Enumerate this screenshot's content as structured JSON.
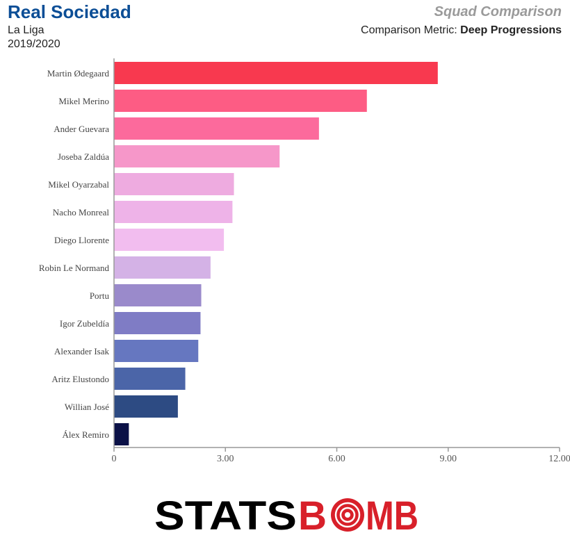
{
  "header": {
    "team": "Real Sociedad",
    "league": "La Liga",
    "season": "2019/2020",
    "chart_type": "Squad Comparison",
    "metric_prefix": "Comparison Metric: ",
    "metric_name": "Deep Progressions"
  },
  "logo": {
    "part1": "STATS",
    "part2": "B",
    "part3": "MB",
    "dark": "#111111",
    "red": "#d8202a"
  },
  "chart_data": {
    "type": "bar",
    "orientation": "horizontal",
    "title": "Squad Comparison",
    "xlabel": "Deep Progressions",
    "ylabel": "",
    "xlim": [
      0,
      12
    ],
    "xticks": [
      0,
      3,
      6,
      9,
      12
    ],
    "xtick_labels": [
      "0",
      "3.00",
      "6.00",
      "9.00",
      "12.00"
    ],
    "categories": [
      "Martin Ødegaard",
      "Mikel Merino",
      "Ander Guevara",
      "Joseba Zaldúa",
      "Mikel Oyarzabal",
      "Nacho Monreal",
      "Diego Llorente",
      "Robin Le Normand",
      "Portu",
      "Igor Zubeldía",
      "Alexander Isak",
      "Aritz Elustondo",
      "Willian José",
      "Álex Remiro"
    ],
    "values": [
      8.72,
      6.81,
      5.52,
      4.46,
      3.23,
      3.19,
      2.96,
      2.6,
      2.35,
      2.33,
      2.27,
      1.92,
      1.72,
      0.4
    ],
    "colors": [
      "#f8394f",
      "#fd5c84",
      "#fc6a9c",
      "#f697c9",
      "#eeabe0",
      "#eeb3e8",
      "#f2bdef",
      "#d4b2e6",
      "#9a8acb",
      "#7f7cc5",
      "#6677c0",
      "#4b65a8",
      "#2d4b83",
      "#0b1147"
    ]
  }
}
